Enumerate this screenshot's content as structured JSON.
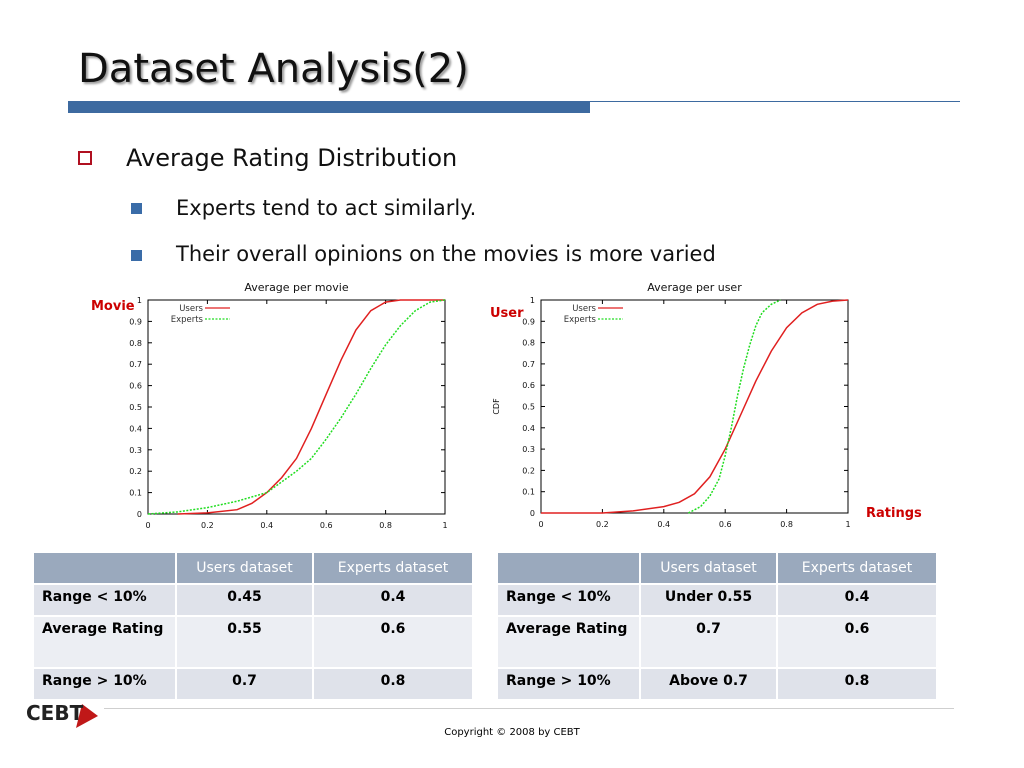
{
  "title": "Dataset Analysis(2)",
  "bullet1": "Average Rating Distribution",
  "sub_bullets": [
    "Experts tend to act similarly.",
    "Their overall opinions on the movies is more varied"
  ],
  "side_labels": {
    "left": "Movie",
    "middle": "User",
    "right": "Ratings"
  },
  "footer": {
    "copyright": "Copyright © 2008 by CEBT",
    "logo": "CEBT"
  },
  "colors": {
    "users": "#e02020",
    "experts": "#20dd20",
    "accent": "#3d6aa0",
    "bullet": "#b01020"
  },
  "chart_data": [
    {
      "type": "line",
      "title": "Average per movie",
      "xlabel": "",
      "ylabel": "",
      "xlim": [
        0,
        1
      ],
      "ylim": [
        0,
        1
      ],
      "xticks": [
        "0",
        "0.2",
        "0.4",
        "0.6",
        "0.8",
        "1"
      ],
      "yticks": [
        "0",
        "0.1",
        "0.2",
        "0.3",
        "0.4",
        "0.5",
        "0.6",
        "0.7",
        "0.8",
        "0.9",
        "1"
      ],
      "legend": "top-left",
      "series": [
        {
          "name": "Users",
          "color": "#e02020",
          "style": "solid",
          "x": [
            0.1,
            0.2,
            0.3,
            0.35,
            0.4,
            0.45,
            0.5,
            0.55,
            0.6,
            0.65,
            0.7,
            0.75,
            0.8,
            0.85,
            0.9,
            1.0
          ],
          "y": [
            0.0,
            0.005,
            0.02,
            0.05,
            0.1,
            0.17,
            0.26,
            0.4,
            0.56,
            0.72,
            0.86,
            0.95,
            0.99,
            1.0,
            1.0,
            1.0
          ]
        },
        {
          "name": "Experts",
          "color": "#20dd20",
          "style": "dashed",
          "x": [
            0.0,
            0.1,
            0.2,
            0.3,
            0.4,
            0.45,
            0.5,
            0.55,
            0.6,
            0.65,
            0.7,
            0.75,
            0.8,
            0.85,
            0.9,
            0.95,
            1.0
          ],
          "y": [
            0.0,
            0.01,
            0.03,
            0.06,
            0.1,
            0.15,
            0.2,
            0.26,
            0.35,
            0.45,
            0.56,
            0.68,
            0.79,
            0.88,
            0.95,
            0.99,
            1.0
          ]
        }
      ]
    },
    {
      "type": "line",
      "title": "Average per user",
      "xlabel": "",
      "ylabel": "CDF",
      "xlim": [
        0,
        1
      ],
      "ylim": [
        0,
        1
      ],
      "xticks": [
        "0",
        "0.2",
        "0.4",
        "0.6",
        "0.8",
        "1"
      ],
      "yticks": [
        "0",
        "0.1",
        "0.2",
        "0.3",
        "0.4",
        "0.5",
        "0.6",
        "0.7",
        "0.8",
        "0.9",
        "1"
      ],
      "legend": "top-left",
      "series": [
        {
          "name": "Users",
          "color": "#e02020",
          "style": "solid",
          "x": [
            0.0,
            0.2,
            0.3,
            0.4,
            0.45,
            0.5,
            0.55,
            0.6,
            0.65,
            0.7,
            0.75,
            0.8,
            0.85,
            0.9,
            0.95,
            1.0
          ],
          "y": [
            0.0,
            0.0,
            0.01,
            0.03,
            0.05,
            0.09,
            0.17,
            0.3,
            0.46,
            0.62,
            0.76,
            0.87,
            0.94,
            0.98,
            0.995,
            1.0
          ]
        },
        {
          "name": "Experts",
          "color": "#20dd20",
          "style": "dashed",
          "x": [
            0.48,
            0.52,
            0.55,
            0.58,
            0.6,
            0.62,
            0.64,
            0.66,
            0.68,
            0.7,
            0.72,
            0.75,
            0.78
          ],
          "y": [
            0.0,
            0.03,
            0.08,
            0.16,
            0.27,
            0.4,
            0.55,
            0.68,
            0.79,
            0.88,
            0.94,
            0.98,
            1.0
          ]
        }
      ]
    }
  ],
  "tables": [
    {
      "headers": [
        "",
        "Users dataset",
        "Experts dataset"
      ],
      "rows": [
        [
          "Range < 10%",
          "0.45",
          "0.4"
        ],
        [
          "Average Rating",
          "0.55",
          "0.6"
        ],
        [
          "Range > 10%",
          "0.7",
          "0.8"
        ]
      ]
    },
    {
      "headers": [
        "",
        "Users dataset",
        "Experts dataset"
      ],
      "rows": [
        [
          "Range < 10%",
          "Under 0.55",
          "0.4"
        ],
        [
          "Average Rating",
          "0.7",
          "0.6"
        ],
        [
          "Range > 10%",
          "Above 0.7",
          "0.8"
        ]
      ]
    }
  ]
}
